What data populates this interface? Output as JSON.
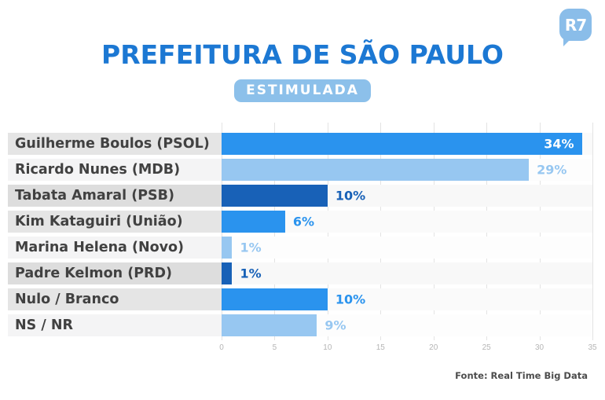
{
  "logo": {
    "text": "R7"
  },
  "header": {
    "title": "PREFEITURA DE SÃO PAULO",
    "badge": "ESTIMULADA"
  },
  "chart_data": {
    "type": "bar",
    "orientation": "horizontal",
    "title": "PREFEITURA DE SÃO PAULO",
    "subtitle": "ESTIMULADA",
    "categories": [
      "Guilherme Boulos (PSOL)",
      "Ricardo Nunes (MDB)",
      "Tabata Amaral (PSB)",
      "Kim Kataguiri (União)",
      "Marina Helena (Novo)",
      "Padre Kelmon (PRD)",
      "Nulo / Branco",
      "NS / NR"
    ],
    "values": [
      34,
      29,
      10,
      6,
      1,
      1,
      10,
      9
    ],
    "value_labels": [
      "34%",
      "29%",
      "10%",
      "6%",
      "1%",
      "1%",
      "10%",
      "9%"
    ],
    "value_inside": [
      true,
      false,
      false,
      false,
      false,
      false,
      false,
      false
    ],
    "xlim": [
      0,
      35
    ],
    "x_ticks": [
      "0",
      "5",
      "10",
      "15",
      "20",
      "25",
      "30",
      "35"
    ],
    "grid": true,
    "legend": "none",
    "bar_colors": [
      "#2A93EE",
      "#97C7F1",
      "#1861B7",
      "#2A93EE",
      "#97C7F1",
      "#1861B7",
      "#2A93EE",
      "#97C7F1"
    ],
    "label_backgrounds": [
      "#E5E5E5",
      "#F4F4F5",
      "#DDDDDD",
      "#E5E5E5",
      "#F4F4F5",
      "#DDDDDD",
      "#E5E5E5",
      "#F4F4F5"
    ]
  },
  "footer": {
    "source": "Fonte: Real Time Big Data"
  },
  "colors": {
    "title": "#1C78D3",
    "badge_bg": "#8CC0EA",
    "badge_text": "#FFFFFF",
    "logo_bg": "#8ABDE9",
    "logo_text": "#FFFFFF",
    "bar_bright_blue": "#2A93EE",
    "bar_light_blue": "#97C7F1",
    "bar_dark_blue": "#1861B7",
    "category_text": "#414141",
    "gridline": "#E3E3E3",
    "tick_text": "#B5B5B5",
    "source_text": "#4D4D4D",
    "value_inside_text": "#FFFFFF"
  }
}
